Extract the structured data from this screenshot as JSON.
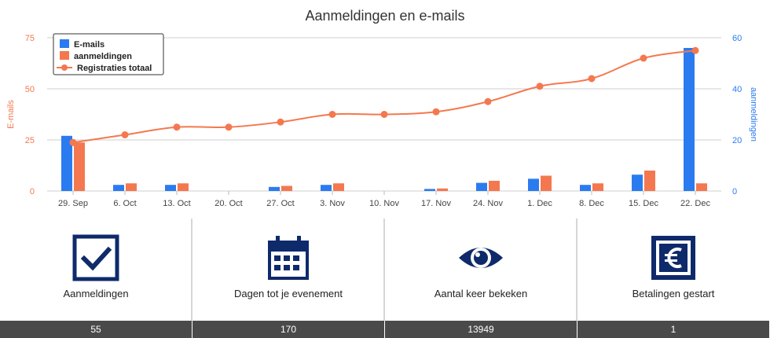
{
  "colors": {
    "emails": "#2b7bf0",
    "aanmeldingen": "#f4784f",
    "registraties": "#f4784f",
    "icon": "#0e2a6b",
    "bar_footer": "#4a4a4a"
  },
  "chart_data": {
    "type": "bar",
    "title": "Aanmeldingen en e-mails",
    "categories": [
      "29. Sep",
      "6. Oct",
      "13. Oct",
      "20. Oct",
      "27. Oct",
      "3. Nov",
      "10. Nov",
      "17. Nov",
      "24. Nov",
      "1. Dec",
      "8. Dec",
      "15. Dec",
      "22. Dec"
    ],
    "left_axis": {
      "title": "E-mails",
      "ticks": [
        "0",
        "25",
        "50",
        "75"
      ],
      "range": [
        0,
        75
      ]
    },
    "right_axis": {
      "title": "aanmeldingen",
      "ticks": [
        "0",
        "20",
        "40",
        "60"
      ],
      "range": [
        0,
        60
      ]
    },
    "legend_position": "top-left",
    "series": [
      {
        "name": "E-mails",
        "type": "bar",
        "axis": "left",
        "color": "#2b7bf0",
        "values": [
          27,
          3,
          3,
          0,
          2,
          3,
          0,
          1,
          4,
          6,
          3,
          8,
          70
        ]
      },
      {
        "name": "aanmeldingen",
        "type": "bar",
        "axis": "right",
        "color": "#f4784f",
        "values": [
          19,
          3,
          3,
          0,
          2,
          3,
          0,
          1,
          4,
          6,
          3,
          8,
          3
        ]
      },
      {
        "name": "Registraties totaal",
        "type": "line",
        "axis": "right",
        "color": "#f4784f",
        "values": [
          19,
          22,
          25,
          25,
          27,
          30,
          30,
          31,
          35,
          41,
          44,
          52,
          55
        ]
      }
    ]
  },
  "stats": [
    {
      "icon": "checkbox-icon",
      "label": "Aanmeldingen",
      "value": "55"
    },
    {
      "icon": "calendar-icon",
      "label": "Dagen tot je evenement",
      "value": "170"
    },
    {
      "icon": "eye-icon",
      "label": "Aantal keer bekeken",
      "value": "13949"
    },
    {
      "icon": "euro-icon",
      "label": "Betalingen gestart",
      "value": "1"
    }
  ]
}
